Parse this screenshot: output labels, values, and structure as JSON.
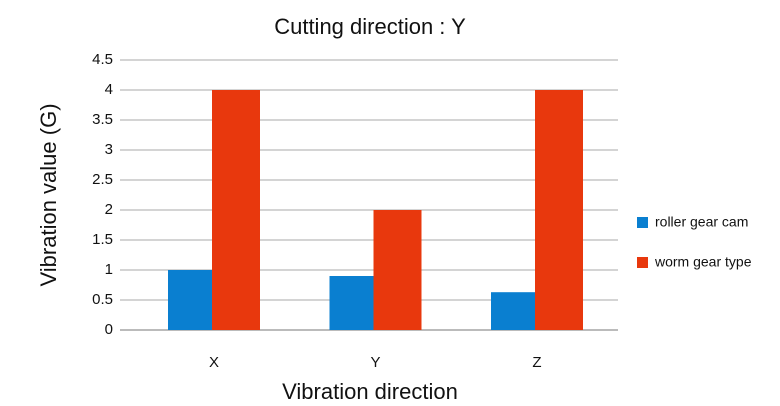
{
  "chart_data": {
    "type": "bar",
    "title": "Cutting direction : Y",
    "x_label": "Vibration direction",
    "y_label": "Vibration value (G)",
    "categories": [
      "X",
      "Y",
      "Z"
    ],
    "series": [
      {
        "name": "roller gear cam",
        "color": "#0a7fd0",
        "values": [
          1,
          0.9,
          0.63
        ]
      },
      {
        "name": "worm gear type",
        "color": "#e8380d",
        "values": [
          4,
          2,
          4
        ]
      }
    ],
    "ylim": [
      0,
      4.5
    ],
    "yticks": [
      0,
      0.5,
      1,
      1.5,
      2,
      2.5,
      3,
      3.5,
      4,
      4.5
    ],
    "grid": true,
    "legend": "right"
  }
}
